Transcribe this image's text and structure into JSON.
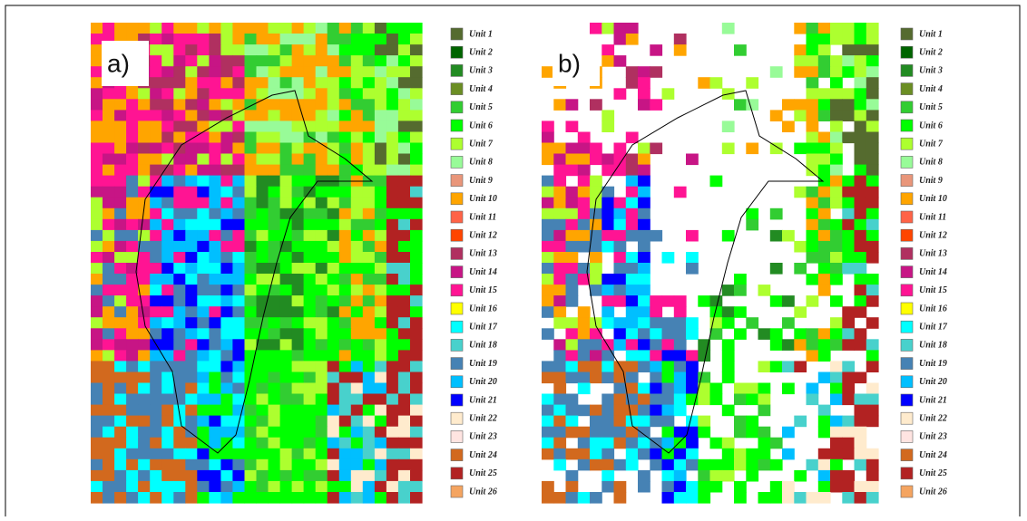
{
  "panels": [
    {
      "label": "a)",
      "legend": [
        {
          "label": "Unit 1",
          "color": "#556b2f"
        },
        {
          "label": "Unit 2",
          "color": "#006400"
        },
        {
          "label": "Unit 3",
          "color": "#228b22"
        },
        {
          "label": "Unit 4",
          "color": "#6b8e23"
        },
        {
          "label": "Unit 5",
          "color": "#32cd32"
        },
        {
          "label": "Unit 6",
          "color": "#00ff00"
        },
        {
          "label": "Unit 7",
          "color": "#adff2f"
        },
        {
          "label": "Unit 8",
          "color": "#98fb98"
        },
        {
          "label": "Unit 9",
          "color": "#e9967a"
        },
        {
          "label": "Unit 10",
          "color": "#ffa500"
        },
        {
          "label": "Unit 11",
          "color": "#ff6347"
        },
        {
          "label": "Unit 12",
          "color": "#ff4500"
        },
        {
          "label": "Unit 13",
          "color": "#b03060"
        },
        {
          "label": "Unit 14",
          "color": "#c71585"
        },
        {
          "label": "Unit 15",
          "color": "#ff1493"
        },
        {
          "label": "Unit 16",
          "color": "#ffff00"
        },
        {
          "label": "Unit 17",
          "color": "#00ffff"
        },
        {
          "label": "Unit 18",
          "color": "#48d1cc"
        },
        {
          "label": "Unit 19",
          "color": "#4682b4"
        },
        {
          "label": "Unit 20",
          "color": "#00bfff"
        },
        {
          "label": "Unit 21",
          "color": "#0000ff"
        },
        {
          "label": "Unit 22",
          "color": "#ffebcd"
        },
        {
          "label": "Unit 23",
          "color": "#ffe4e1"
        },
        {
          "label": "Unit 24",
          "color": "#d2691e"
        },
        {
          "label": "Unit 25",
          "color": "#b22222"
        },
        {
          "label": "Unit 26",
          "color": "#f4a460"
        }
      ]
    },
    {
      "label": "b)",
      "legend": [
        {
          "label": "Unit 1",
          "color": "#556b2f"
        },
        {
          "label": "Unit 2",
          "color": "#006400"
        },
        {
          "label": "Unit 3",
          "color": "#228b22"
        },
        {
          "label": "Unit 4",
          "color": "#6b8e23"
        },
        {
          "label": "Unit 5",
          "color": "#32cd32"
        },
        {
          "label": "Unit 6",
          "color": "#00ff00"
        },
        {
          "label": "Unit 7",
          "color": "#adff2f"
        },
        {
          "label": "Unit 8",
          "color": "#98fb98"
        },
        {
          "label": "Unit 9",
          "color": "#e9967a"
        },
        {
          "label": "Unit 10",
          "color": "#ffa500"
        },
        {
          "label": "Unit 11",
          "color": "#ff6347"
        },
        {
          "label": "Unit 12",
          "color": "#ff4500"
        },
        {
          "label": "Unit 13",
          "color": "#b03060"
        },
        {
          "label": "Unit 14",
          "color": "#c71585"
        },
        {
          "label": "Unit 15",
          "color": "#ff1493"
        },
        {
          "label": "Unit 16",
          "color": "#ffff00"
        },
        {
          "label": "Unit 17",
          "color": "#00ffff"
        },
        {
          "label": "Unit 18",
          "color": "#48d1cc"
        },
        {
          "label": "Unit 19",
          "color": "#4682b4"
        },
        {
          "label": "Unit 20",
          "color": "#00bfff"
        },
        {
          "label": "Unit 21",
          "color": "#0000ff"
        },
        {
          "label": "Unit 22",
          "color": "#ffebcd"
        },
        {
          "label": "Unit 23",
          "color": "#ffe4e1"
        },
        {
          "label": "Unit 24",
          "color": "#d2691e"
        },
        {
          "label": "Unit 25",
          "color": "#b22222"
        },
        {
          "label": "Unit 26",
          "color": "#f4a460"
        }
      ]
    }
  ]
}
